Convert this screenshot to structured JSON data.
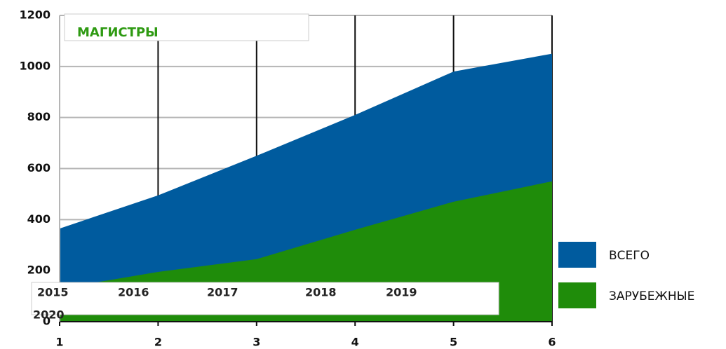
{
  "chart_data": {
    "type": "area",
    "title": "МАГИСТРЫ",
    "x": [
      1,
      2,
      3,
      4,
      5,
      6
    ],
    "series": [
      {
        "name": "ВСЕГО",
        "color": "#005b9e",
        "values": [
          365,
          495,
          650,
          810,
          980,
          1050
        ]
      },
      {
        "name": "ЗАРУБЕЖНЫЕ",
        "color": "#1f8c0a",
        "values": [
          130,
          195,
          245,
          360,
          470,
          550
        ]
      }
    ],
    "xlim": [
      1,
      6
    ],
    "xticks": [
      1,
      2,
      3,
      4,
      5,
      6
    ],
    "ylim": [
      0,
      1200
    ],
    "yticks": [
      0,
      200,
      400,
      600,
      800,
      1000,
      1200
    ],
    "grid": true,
    "legend": "right",
    "annotations": [
      "2015",
      "2016",
      "2017",
      "2018",
      "2019",
      "2020"
    ]
  }
}
